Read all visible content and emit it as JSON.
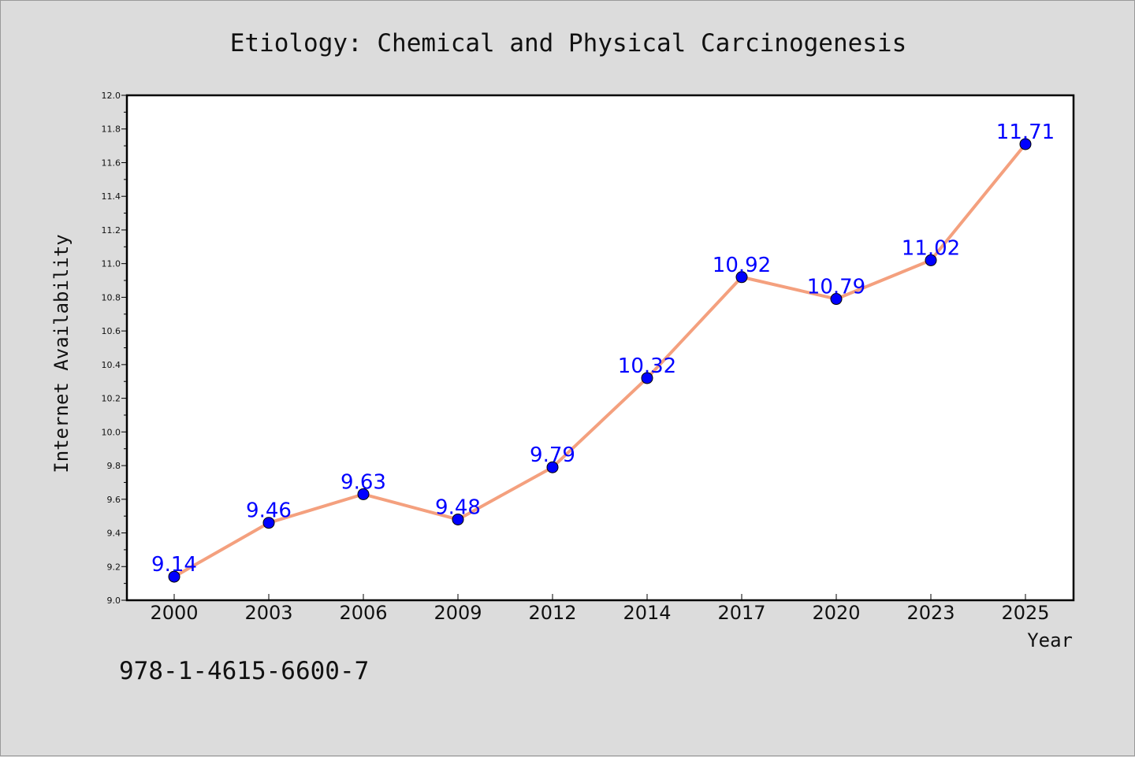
{
  "chart_data": {
    "type": "line",
    "title": "Etiology: Chemical and Physical Carcinogenesis",
    "xlabel": "Year",
    "ylabel": "Internet Availability",
    "categories": [
      "2000",
      "2003",
      "2006",
      "2009",
      "2012",
      "2014",
      "2017",
      "2020",
      "2023",
      "2025"
    ],
    "series": [
      {
        "values": [
          9.14,
          9.46,
          9.63,
          9.48,
          9.79,
          10.32,
          10.92,
          10.79,
          11.02,
          11.71
        ],
        "data_labels": [
          "9.14",
          "9.46",
          "9.63",
          "9.48",
          "9.79",
          "10.32",
          "10.92",
          "10.79",
          "11.02",
          "11.71"
        ]
      }
    ],
    "ylim": [
      9.0,
      12.0
    ],
    "yticks": [
      9.0,
      9.2,
      9.4,
      9.6,
      9.8,
      10.0,
      10.2,
      10.4,
      10.6,
      10.8,
      11.0,
      11.2,
      11.4,
      11.6,
      11.8,
      12.0
    ],
    "ytick_labels": [
      "9.0",
      "9.2",
      "9.4",
      "9.6",
      "9.8",
      "10.0",
      "10.2",
      "10.4",
      "10.6",
      "10.8",
      "11.0",
      "11.2",
      "11.4",
      "11.6",
      "11.8",
      "12.0"
    ],
    "grid": false,
    "colors": {
      "line": "#f4a07e",
      "marker": "#0000ff",
      "marker_edge": "#000000",
      "label": "#0000ff"
    }
  },
  "annotation": "978-1-4615-6600-7"
}
